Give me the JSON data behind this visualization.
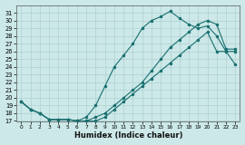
{
  "xlabel": "Humidex (Indice chaleur)",
  "xlim": [
    -0.5,
    23.5
  ],
  "ylim": [
    17,
    32
  ],
  "yticks": [
    17,
    18,
    19,
    20,
    21,
    22,
    23,
    24,
    25,
    26,
    27,
    28,
    29,
    30,
    31
  ],
  "xticks": [
    0,
    1,
    2,
    3,
    4,
    5,
    6,
    7,
    8,
    9,
    10,
    11,
    12,
    13,
    14,
    15,
    16,
    17,
    18,
    19,
    20,
    21,
    22,
    23
  ],
  "bg_color": "#cce8e8",
  "line_color": "#1a7070",
  "grid_color": "#b0d0d0",
  "line1_x": [
    0,
    1,
    2,
    3,
    4,
    5,
    6,
    7,
    8,
    9,
    10,
    11,
    12,
    13,
    14,
    15,
    16,
    17,
    18,
    19,
    20,
    21,
    22,
    23
  ],
  "line1_y": [
    19.5,
    18.5,
    18.0,
    17.2,
    17.2,
    17.2,
    17.0,
    17.5,
    19.0,
    21.5,
    24.0,
    25.5,
    27.0,
    29.0,
    30.0,
    30.5,
    31.2,
    30.3,
    29.5,
    29.0,
    29.3,
    28.0,
    26.0,
    26.0
  ],
  "line2_x": [
    0,
    1,
    2,
    3,
    4,
    5,
    6,
    7,
    8,
    9,
    10,
    11,
    12,
    13,
    14,
    15,
    16,
    17,
    18,
    19,
    20,
    21,
    22,
    23
  ],
  "line2_y": [
    19.5,
    18.5,
    18.0,
    17.2,
    17.2,
    17.2,
    17.0,
    17.0,
    17.5,
    18.0,
    19.0,
    20.0,
    21.0,
    22.0,
    23.5,
    25.0,
    26.5,
    27.5,
    28.5,
    29.5,
    30.0,
    29.5,
    26.3,
    26.3
  ],
  "line3_x": [
    0,
    1,
    2,
    3,
    4,
    5,
    6,
    7,
    8,
    9,
    10,
    11,
    12,
    13,
    14,
    15,
    16,
    17,
    18,
    19,
    20,
    21,
    22,
    23
  ],
  "line3_y": [
    19.5,
    18.5,
    18.0,
    17.2,
    17.2,
    17.2,
    17.0,
    17.0,
    17.0,
    17.5,
    18.5,
    19.5,
    20.5,
    21.5,
    22.5,
    23.5,
    24.5,
    25.5,
    26.5,
    27.5,
    28.5,
    26.0,
    26.0,
    24.3
  ]
}
